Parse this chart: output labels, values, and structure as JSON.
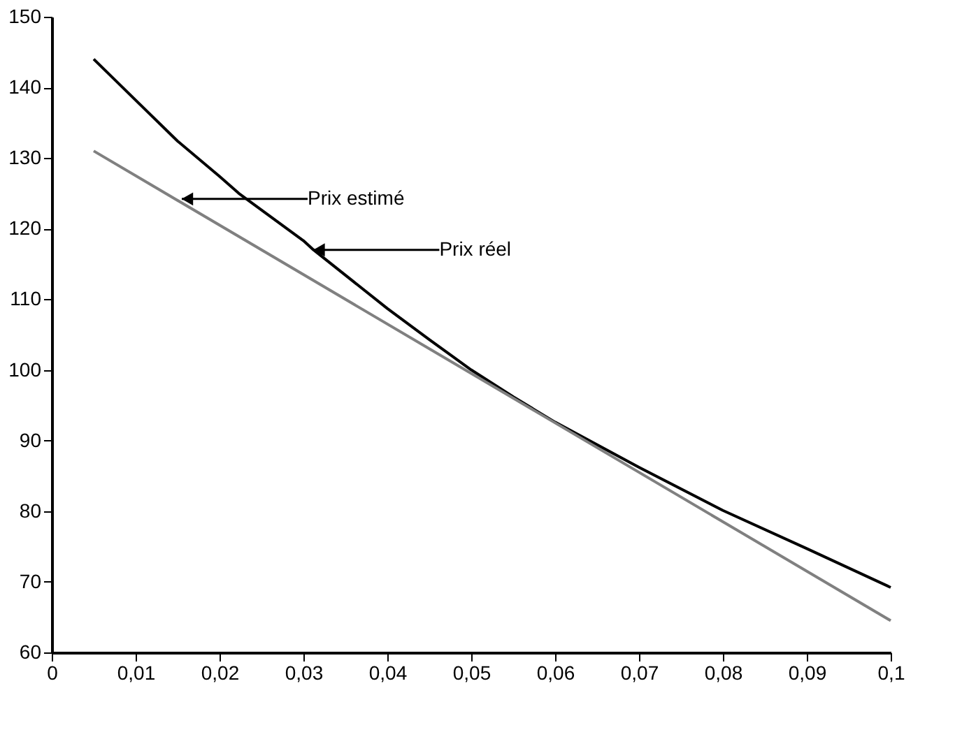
{
  "chart_data": {
    "type": "line",
    "series": [
      {
        "color": "#000000",
        "x": [
          0.005,
          0.01,
          0.015,
          0.02,
          0.0223,
          0.03,
          0.0312,
          0.04,
          0.045,
          0.05,
          0.055,
          0.06,
          0.07,
          0.08,
          0.09,
          0.1
        ],
        "values": [
          144.0,
          138.2,
          132.4,
          127.4,
          125.0,
          118.3,
          117.0,
          108.7,
          104.3,
          100.0,
          96.2,
          92.6,
          86.2,
          80.1,
          74.7,
          69.2
        ]
      },
      {
        "color": "#808080",
        "x": [
          0.005,
          0.1
        ],
        "values": [
          131.0,
          64.5
        ]
      }
    ],
    "annotations": [
      {
        "text": "Prix estimé",
        "x": 0.0155,
        "y": 124.2
      },
      {
        "text": "Prix réel",
        "x": 0.0312,
        "y": 117.0
      }
    ],
    "xlim": [
      0,
      0.1
    ],
    "ylim": [
      60,
      150
    ],
    "xticks": [
      {
        "value": 0,
        "label": "0"
      },
      {
        "value": 0.01,
        "label": "0,01"
      },
      {
        "value": 0.02,
        "label": "0,02"
      },
      {
        "value": 0.03,
        "label": "0,03"
      },
      {
        "value": 0.04,
        "label": "0,04"
      },
      {
        "value": 0.05,
        "label": "0,05"
      },
      {
        "value": 0.06,
        "label": "0,06"
      },
      {
        "value": 0.07,
        "label": "0,07"
      },
      {
        "value": 0.08,
        "label": "0,08"
      },
      {
        "value": 0.09,
        "label": "0,09"
      },
      {
        "value": 0.1,
        "label": "0,1"
      }
    ],
    "yticks": [
      60,
      70,
      80,
      90,
      100,
      110,
      120,
      130,
      140,
      150
    ],
    "grid": false,
    "marker": "none",
    "line_style": "solid"
  }
}
